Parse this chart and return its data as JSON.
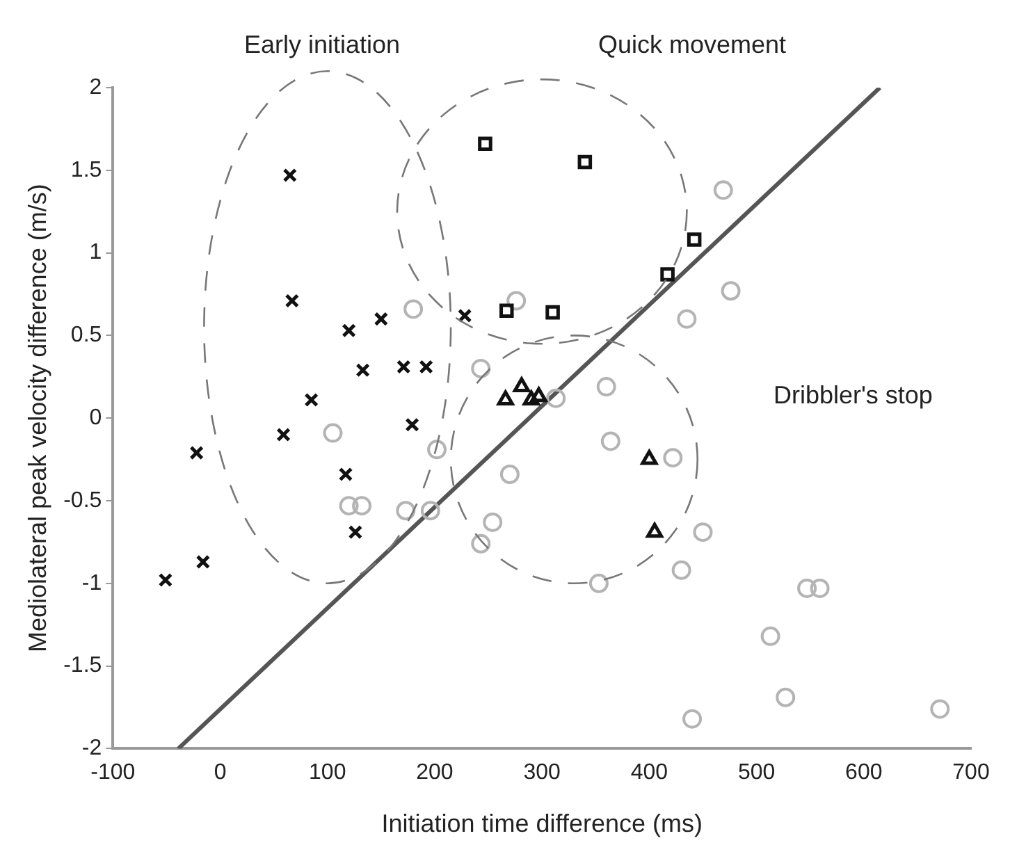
{
  "chart_data": {
    "type": "scatter",
    "xlabel": "Initiation time difference (ms)",
    "ylabel": "Mediolateral peak velocity difference (m/s)",
    "xlim": [
      -100,
      700
    ],
    "xticks": [
      -100,
      0,
      100,
      200,
      300,
      400,
      500,
      600,
      700
    ],
    "ylim": [
      -2,
      2
    ],
    "yticks": [
      -2,
      -1.5,
      -1,
      -0.5,
      0,
      0.5,
      1,
      1.5,
      2
    ],
    "grid": false,
    "legend": false,
    "annotations": [
      "Early initiation",
      "Quick movement",
      "Dribbler's stop"
    ],
    "series": [
      {
        "color": "#111111",
        "marker": "cross",
        "x": [
          65,
          67,
          120,
          150,
          133,
          171,
          192,
          85,
          179,
          228,
          59,
          -22,
          117,
          126,
          -16,
          -51
        ],
        "values": [
          1.47,
          0.71,
          0.53,
          0.6,
          0.29,
          0.31,
          0.31,
          0.11,
          -0.04,
          0.62,
          -0.1,
          -0.21,
          -0.34,
          -0.69,
          -0.87,
          -0.98
        ]
      },
      {
        "color": "#111111",
        "marker": "square",
        "x": [
          247,
          340,
          442,
          417,
          267,
          310
        ],
        "values": [
          1.66,
          1.55,
          1.08,
          0.87,
          0.65,
          0.64
        ]
      },
      {
        "color": "#111111",
        "marker": "triangle",
        "x": [
          266,
          281,
          290,
          297,
          400,
          405
        ],
        "values": [
          0.11,
          0.19,
          0.11,
          0.13,
          -0.25,
          -0.69
        ]
      },
      {
        "color": "#b4b4b4",
        "marker": "circle",
        "x": [
          180,
          105,
          202,
          120,
          132,
          173,
          196,
          276,
          469,
          476,
          435,
          243,
          360,
          313,
          364,
          270,
          254,
          243,
          422,
          450,
          430,
          353,
          547,
          559,
          513,
          527,
          440,
          671
        ],
        "values": [
          0.66,
          -0.09,
          -0.19,
          -0.53,
          -0.53,
          -0.56,
          -0.56,
          0.71,
          1.38,
          0.77,
          0.6,
          0.3,
          0.19,
          0.12,
          -0.14,
          -0.34,
          -0.63,
          -0.76,
          -0.24,
          -0.69,
          -0.92,
          -1.0,
          -1.03,
          -1.03,
          -1.32,
          -1.69,
          -1.82,
          -1.76
        ]
      },
      {
        "type": "line",
        "color": "#555555",
        "marker": "none",
        "line_style": "solid",
        "x": [
          -39,
          615
        ],
        "values": [
          -2,
          2
        ]
      }
    ]
  }
}
